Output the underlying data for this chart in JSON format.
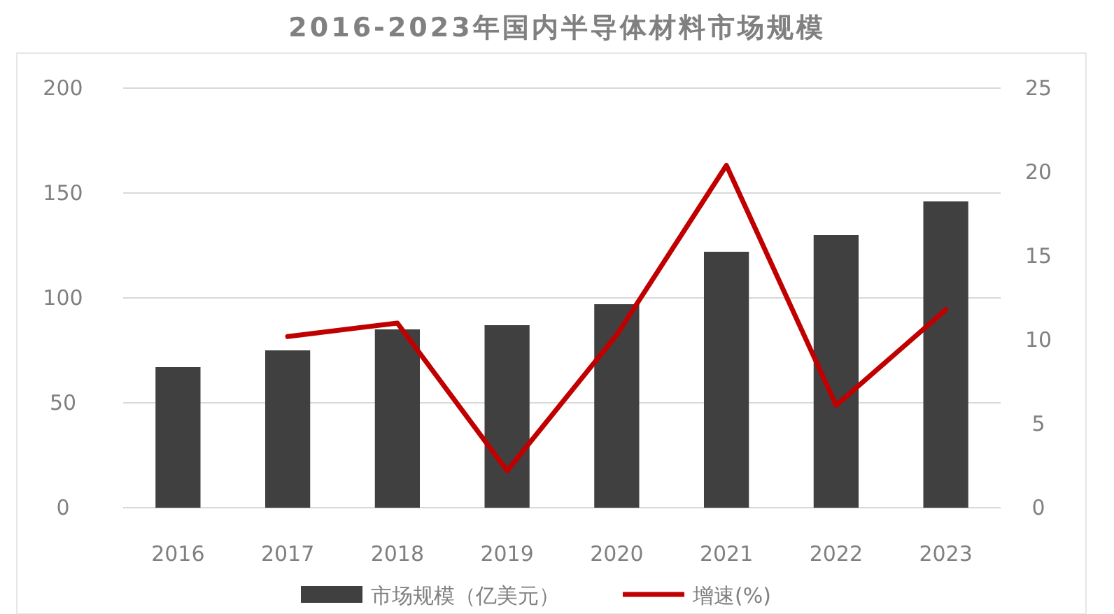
{
  "chart_data": {
    "type": "bar",
    "title": "2016-2023年国内半导体材料市场规模",
    "categories": [
      "2016",
      "2017",
      "2018",
      "2019",
      "2020",
      "2021",
      "2022",
      "2023"
    ],
    "series": [
      {
        "name": "市场规模（亿美元）",
        "color": "#404040",
        "values": [
          67,
          75,
          85,
          87,
          97,
          122,
          130,
          146
        ]
      },
      {
        "name": "增速(%)",
        "type": "line",
        "axis": "y2",
        "color": "#c00000",
        "values": [
          null,
          10.2,
          11.0,
          2.2,
          10.3,
          20.4,
          6.1,
          11.8
        ]
      }
    ],
    "ylim": [
      0,
      200
    ],
    "yticks": [
      0,
      50,
      100,
      150,
      200
    ],
    "y2lim": [
      0,
      25
    ],
    "y2ticks": [
      0,
      5,
      10,
      15,
      20,
      25
    ],
    "grid": "y",
    "legend": "bottom",
    "marker": "none",
    "line_style": "solid"
  }
}
